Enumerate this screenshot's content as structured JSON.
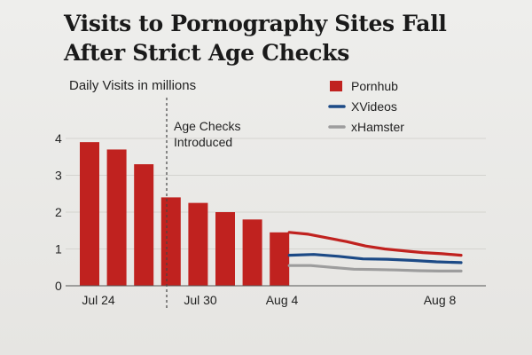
{
  "chart_data": {
    "type": "bar+line",
    "title": "Visits to Pornography Sites Fall After Strict Age Checks",
    "ylabel": "Daily Visits in millions",
    "xlabel": "",
    "ylim": [
      0,
      4
    ],
    "y_ticks": [
      0,
      1,
      2,
      3,
      4
    ],
    "x_tick_labels": [
      "Jul 24",
      "Jul 30",
      "Aug 4",
      "Aug 8"
    ],
    "grid": true,
    "legend_position": "top-right",
    "annotation": "Age Checks Introduced",
    "series": [
      {
        "name": "Pornhub",
        "kind": "bar",
        "color": "#c0221f",
        "values": [
          3.9,
          3.7,
          3.3,
          2.4,
          2.25,
          2.0,
          1.8,
          1.45
        ]
      },
      {
        "name": "Pornhub",
        "kind": "line",
        "color": "#c0221f",
        "values": [
          1.45,
          1.4,
          1.3,
          1.2,
          1.08,
          1.0,
          0.95,
          0.9,
          0.87,
          0.83
        ]
      },
      {
        "name": "XVideos",
        "kind": "line",
        "color": "#1c4a86",
        "values": [
          0.83,
          0.85,
          0.8,
          0.73,
          0.72,
          0.69,
          0.65,
          0.63
        ]
      },
      {
        "name": "xHamster",
        "kind": "line",
        "color": "#9d9d9d",
        "values": [
          0.55,
          0.55,
          0.5,
          0.45,
          0.44,
          0.43,
          0.41,
          0.4,
          0.4
        ]
      }
    ]
  }
}
